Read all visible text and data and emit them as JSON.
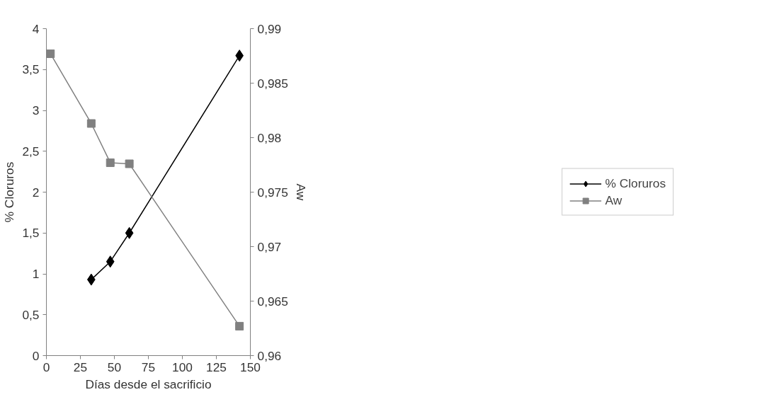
{
  "chart_data": {
    "type": "line",
    "xlabel": "Días desde el sacrificio",
    "ylabel": "% Cloruros",
    "y2label": "Aw",
    "xlim": [
      0,
      150
    ],
    "xticks": [
      0,
      25,
      50,
      75,
      100,
      125,
      150
    ],
    "ylim": [
      0,
      4
    ],
    "yticks": [
      0,
      {
        "value": 0.5,
        "label": "0,5"
      },
      1,
      {
        "value": 1.5,
        "label": "1,5"
      },
      2,
      {
        "value": 2.5,
        "label": "2,5"
      },
      3,
      {
        "value": 3.5,
        "label": "3,5"
      },
      4
    ],
    "y2lim": [
      0.96,
      0.99
    ],
    "y2ticks": [
      {
        "value": 0.96,
        "label": "0,96"
      },
      {
        "value": 0.965,
        "label": "0,965"
      },
      {
        "value": 0.97,
        "label": "0,97"
      },
      {
        "value": 0.975,
        "label": "0,975"
      },
      {
        "value": 0.98,
        "label": "0,98"
      },
      {
        "value": 0.985,
        "label": "0,985"
      },
      {
        "value": 0.99,
        "label": "0,99"
      }
    ],
    "grid": false,
    "legend": "right",
    "series": [
      {
        "name": "% Cloruros",
        "color": "#000000",
        "marker": "diamond",
        "x": [
          33,
          47,
          61,
          142
        ],
        "values": [
          0.93,
          1.15,
          1.5,
          3.67
        ]
      },
      {
        "name": "Aw",
        "color": "#808080",
        "marker": "square",
        "axis": "y2",
        "x": [
          3,
          33,
          47,
          61,
          142
        ],
        "values": [
          0.9877,
          0.9813,
          0.9777,
          0.9776,
          0.9627
        ]
      }
    ]
  }
}
